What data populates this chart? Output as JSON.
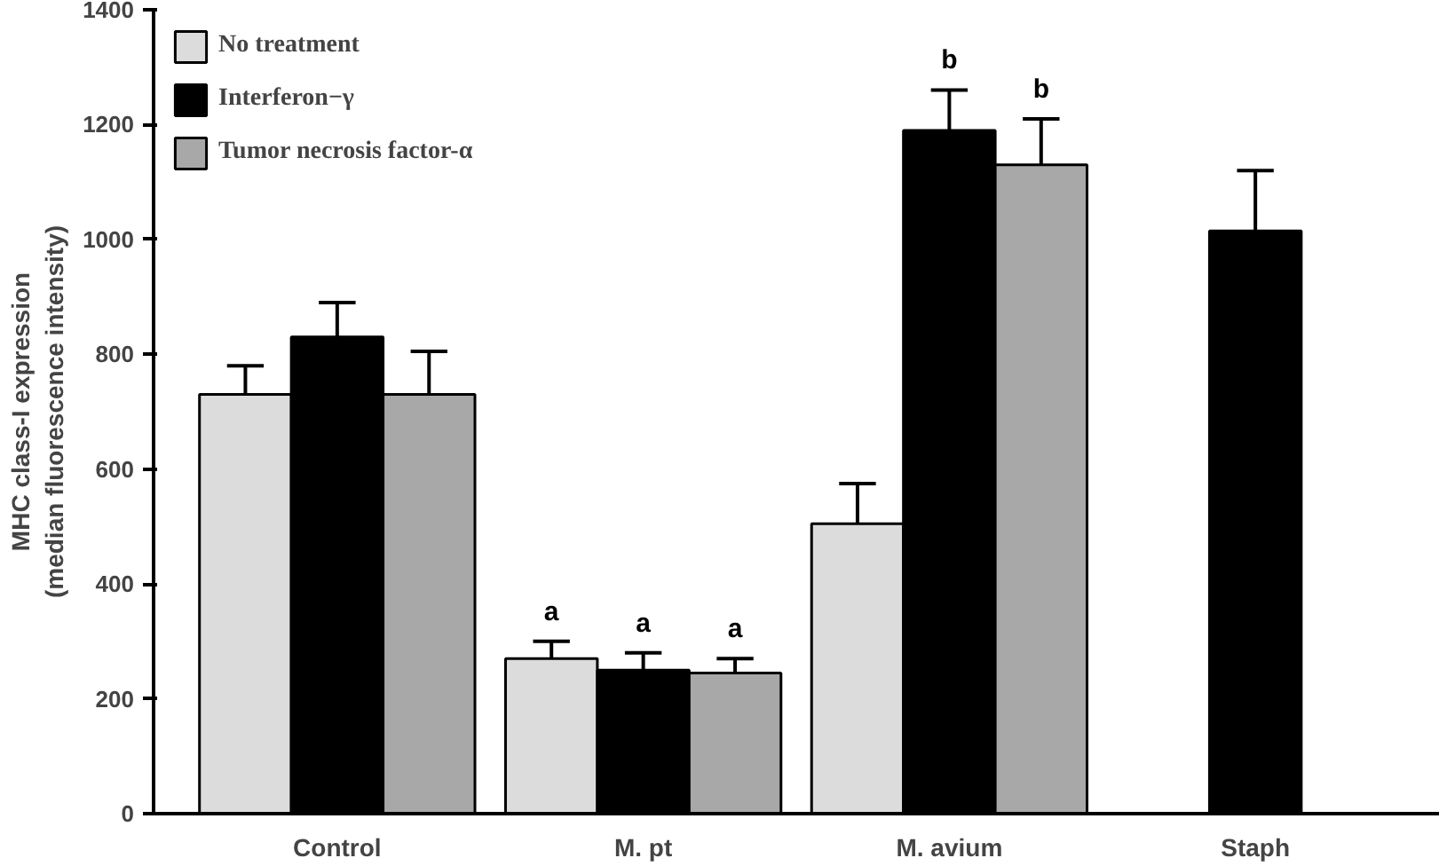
{
  "chart_data": {
    "type": "bar",
    "ylabel": "MHC class-I expression\n(median fluorescence intensity)",
    "categories": [
      "Control",
      "M. pt",
      "M. avium",
      "Staph"
    ],
    "series": [
      {
        "name": "No treatment",
        "color": "#dcdcdc",
        "values": [
          730,
          270,
          505,
          null
        ],
        "errors": [
          [
            730,
            780
          ],
          [
            270,
            300
          ],
          [
            505,
            575
          ],
          null
        ],
        "value_labels": [
          null,
          "a",
          null,
          null
        ]
      },
      {
        "name": "Interferon−γ",
        "color": "#000000",
        "values": [
          830,
          250,
          1190,
          1015
        ],
        "errors": [
          [
            830,
            890
          ],
          [
            250,
            280
          ],
          [
            1190,
            1260
          ],
          [
            1015,
            1120
          ]
        ],
        "value_labels": [
          null,
          "a",
          "b",
          null
        ]
      },
      {
        "name": "Tumor necrosis factor-α",
        "color": "#a8a8a8",
        "values": [
          730,
          245,
          1130,
          null
        ],
        "errors": [
          [
            730,
            805
          ],
          [
            245,
            270
          ],
          [
            1130,
            1210
          ],
          null
        ],
        "value_labels": [
          null,
          "a",
          "b",
          null
        ]
      }
    ],
    "ylim": [
      0,
      1400
    ],
    "yticks": [
      0,
      200,
      400,
      600,
      800,
      1000,
      1200,
      1400
    ],
    "grid": false,
    "legend": "top left"
  }
}
